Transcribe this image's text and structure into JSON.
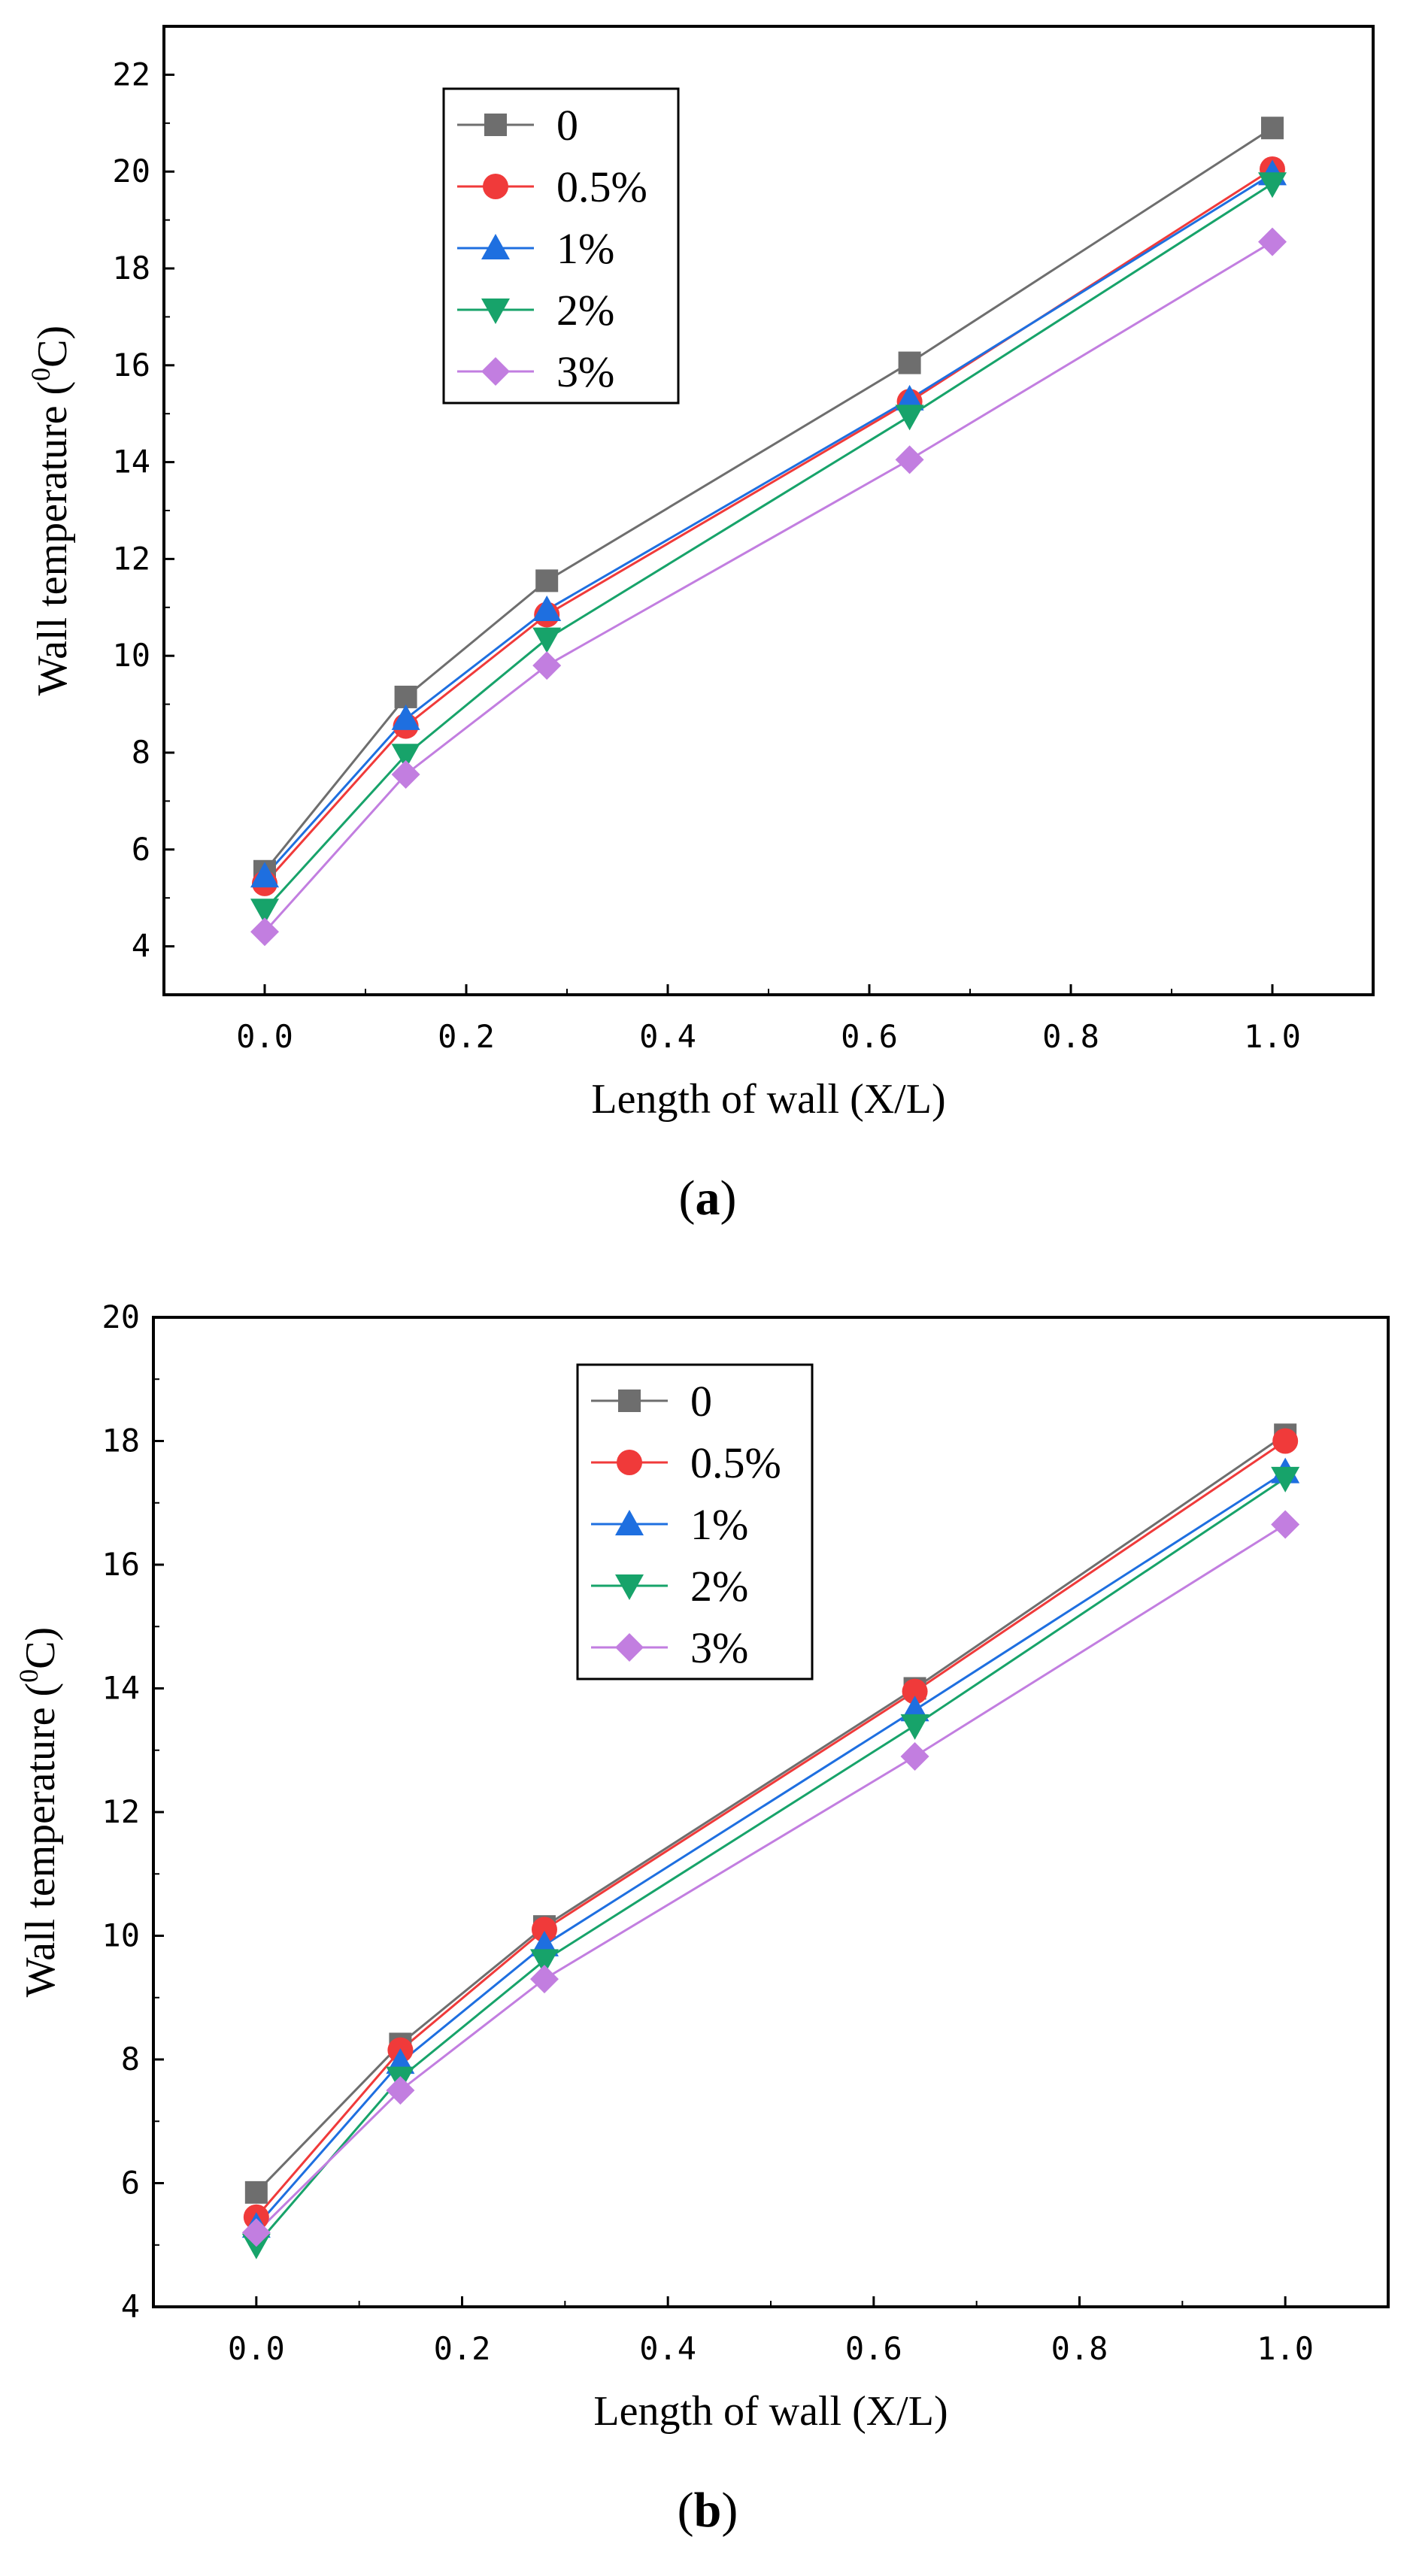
{
  "chart_data": [
    {
      "type": "line",
      "panel_label": "a",
      "title": "",
      "xlabel": "Length of wall (X/L)",
      "ylabel": "Wall temperature (",
      "ylabel_sup": "0",
      "ylabel_unit": "C)",
      "xlim": [
        -0.1,
        1.1
      ],
      "ylim": [
        3,
        23
      ],
      "xticks": [
        0.0,
        0.2,
        0.4,
        0.6,
        0.8,
        1.0
      ],
      "xtick_labels": [
        "0.0",
        "0.2",
        "0.4",
        "0.6",
        "0.8",
        "1.0"
      ],
      "yticks": [
        4,
        6,
        8,
        10,
        12,
        14,
        16,
        18,
        20,
        22
      ],
      "ytick_labels": [
        "4",
        "6",
        "8",
        "10",
        "12",
        "14",
        "16",
        "18",
        "20",
        "22"
      ],
      "grid": false,
      "legend_position": "top-left",
      "x": [
        0.0,
        0.14,
        0.28,
        0.64,
        1.0
      ],
      "series": [
        {
          "name": "0",
          "marker": "square",
          "color": "#6e6e6e",
          "values": [
            5.55,
            9.15,
            11.55,
            16.05,
            20.9
          ]
        },
        {
          "name": "0.5%",
          "marker": "circle",
          "color": "#f03a3a",
          "values": [
            5.3,
            8.55,
            10.85,
            15.25,
            20.05
          ]
        },
        {
          "name": "1%",
          "marker": "triangle-up",
          "color": "#1e6fe0",
          "values": [
            5.45,
            8.7,
            10.95,
            15.3,
            19.95
          ]
        },
        {
          "name": "2%",
          "marker": "triangle-down",
          "color": "#17a36a",
          "values": [
            4.75,
            7.95,
            10.35,
            14.95,
            19.75
          ]
        },
        {
          "name": "3%",
          "marker": "diamond",
          "color": "#c27ee0",
          "values": [
            4.3,
            7.55,
            9.8,
            14.05,
            18.55
          ]
        }
      ]
    },
    {
      "type": "line",
      "panel_label": "b",
      "title": "",
      "xlabel": "Length of wall (X/L)",
      "ylabel": "Wall temperature (",
      "ylabel_sup": "0",
      "ylabel_unit": "C)",
      "xlim": [
        -0.1,
        1.1
      ],
      "ylim": [
        4,
        20
      ],
      "xticks": [
        0.0,
        0.2,
        0.4,
        0.6,
        0.8,
        1.0
      ],
      "xtick_labels": [
        "0.0",
        "0.2",
        "0.4",
        "0.6",
        "0.8",
        "1.0"
      ],
      "yticks": [
        4,
        6,
        8,
        10,
        12,
        14,
        16,
        18,
        20
      ],
      "ytick_labels": [
        "4",
        "6",
        "8",
        "10",
        "12",
        "14",
        "16",
        "18",
        "20"
      ],
      "grid": false,
      "legend_position": "top-left",
      "x": [
        0.0,
        0.14,
        0.28,
        0.64,
        1.0
      ],
      "series": [
        {
          "name": "0",
          "marker": "square",
          "color": "#6e6e6e",
          "values": [
            5.85,
            8.25,
            10.15,
            14.0,
            18.1
          ]
        },
        {
          "name": "0.5%",
          "marker": "circle",
          "color": "#f03a3a",
          "values": [
            5.45,
            8.15,
            10.1,
            13.95,
            18.0
          ]
        },
        {
          "name": "1%",
          "marker": "triangle-up",
          "color": "#1e6fe0",
          "values": [
            5.3,
            7.95,
            9.85,
            13.65,
            17.5
          ]
        },
        {
          "name": "2%",
          "marker": "triangle-down",
          "color": "#17a36a",
          "values": [
            5.0,
            7.7,
            9.6,
            13.4,
            17.4
          ]
        },
        {
          "name": "3%",
          "marker": "diamond",
          "color": "#c27ee0",
          "values": [
            5.2,
            7.5,
            9.3,
            12.9,
            16.65
          ]
        }
      ]
    }
  ]
}
